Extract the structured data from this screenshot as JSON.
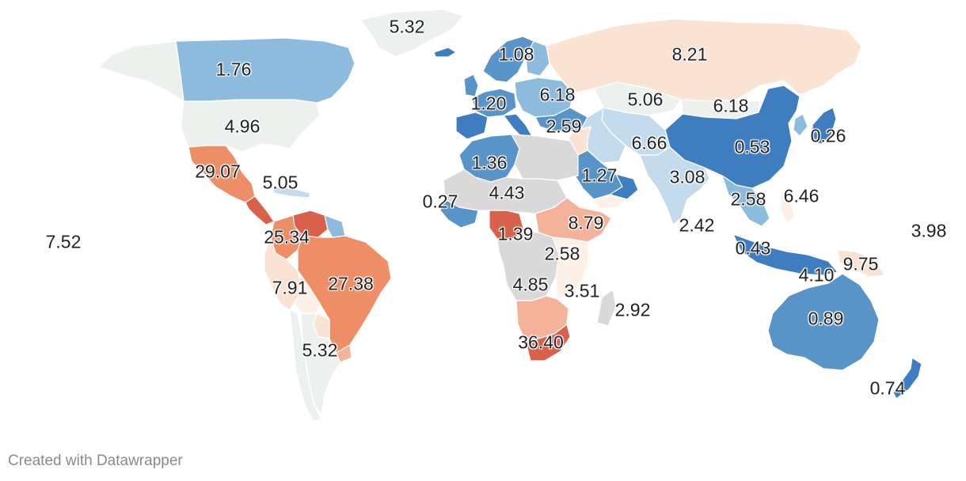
{
  "map": {
    "colors": {
      "deep_red": "#c1272d",
      "red": "#d9604a",
      "orange": "#ee8e66",
      "salmon": "#f4b29a",
      "peach": "#fbe3d3",
      "cream": "#fdf1e7",
      "neutral": "#edf1ee",
      "light_blue": "#c4dbee",
      "mid_blue": "#8cbbde",
      "blue": "#5894c8",
      "dark_blue": "#3d7dc0",
      "no_data": "#d9d9d9"
    },
    "regions": [
      {
        "name": "greenland",
        "color": "neutral"
      },
      {
        "name": "canada",
        "color": "mid_blue"
      },
      {
        "name": "alaska",
        "color": "neutral"
      },
      {
        "name": "united-states",
        "color": "neutral"
      },
      {
        "name": "mexico",
        "color": "orange"
      },
      {
        "name": "central-america",
        "color": "red"
      },
      {
        "name": "caribbean",
        "color": "light_blue"
      },
      {
        "name": "venezuela",
        "color": "red"
      },
      {
        "name": "colombia",
        "color": "orange"
      },
      {
        "name": "guianas",
        "color": "mid_blue"
      },
      {
        "name": "brazil",
        "color": "orange"
      },
      {
        "name": "peru",
        "color": "peach"
      },
      {
        "name": "bolivia",
        "color": "cream"
      },
      {
        "name": "paraguay",
        "color": "peach"
      },
      {
        "name": "uruguay",
        "color": "salmon"
      },
      {
        "name": "chile",
        "color": "neutral"
      },
      {
        "name": "argentina",
        "color": "neutral"
      },
      {
        "name": "iceland",
        "color": "dark_blue"
      },
      {
        "name": "scandinavia",
        "color": "blue"
      },
      {
        "name": "finland",
        "color": "mid_blue"
      },
      {
        "name": "united-kingdom",
        "color": "blue"
      },
      {
        "name": "western-europe",
        "color": "blue"
      },
      {
        "name": "iberia",
        "color": "dark_blue"
      },
      {
        "name": "italy",
        "color": "dark_blue"
      },
      {
        "name": "eastern-europe",
        "color": "mid_blue"
      },
      {
        "name": "turkey",
        "color": "blue"
      },
      {
        "name": "russia",
        "color": "peach"
      },
      {
        "name": "kazakhstan",
        "color": "neutral"
      },
      {
        "name": "mongolia",
        "color": "neutral"
      },
      {
        "name": "china",
        "color": "dark_blue"
      },
      {
        "name": "korea",
        "color": "mid_blue"
      },
      {
        "name": "japan",
        "color": "dark_blue"
      },
      {
        "name": "central-asia",
        "color": "light_blue"
      },
      {
        "name": "iran",
        "color": "light_blue"
      },
      {
        "name": "middle-east",
        "color": "peach"
      },
      {
        "name": "arabian-peninsula",
        "color": "blue"
      },
      {
        "name": "oman",
        "color": "dark_blue"
      },
      {
        "name": "yemen",
        "color": "cream"
      },
      {
        "name": "south-asia",
        "color": "light_blue"
      },
      {
        "name": "southeast-asia",
        "color": "mid_blue"
      },
      {
        "name": "philippines",
        "color": "cream"
      },
      {
        "name": "indonesia",
        "color": "dark_blue"
      },
      {
        "name": "new-guinea",
        "color": "peach"
      },
      {
        "name": "australia",
        "color": "blue"
      },
      {
        "name": "new-zealand",
        "color": "dark_blue"
      },
      {
        "name": "north-africa-west",
        "color": "blue"
      },
      {
        "name": "egypt-libya",
        "color": "no_data"
      },
      {
        "name": "sahel",
        "color": "no_data"
      },
      {
        "name": "west-africa-coast",
        "color": "blue"
      },
      {
        "name": "nigeria",
        "color": "red"
      },
      {
        "name": "horn-of-africa",
        "color": "salmon"
      },
      {
        "name": "central-africa",
        "color": "no_data"
      },
      {
        "name": "east-africa",
        "color": "cream"
      },
      {
        "name": "southern-africa",
        "color": "salmon"
      },
      {
        "name": "south-africa",
        "color": "red"
      },
      {
        "name": "madagascar",
        "color": "no_data"
      }
    ],
    "labels": [
      {
        "text": "5.32",
        "name": "label-greenland"
      },
      {
        "text": "1.76",
        "name": "label-canada"
      },
      {
        "text": "4.96",
        "name": "label-united-states"
      },
      {
        "text": "29.07",
        "name": "label-mexico"
      },
      {
        "text": "5.05",
        "name": "label-caribbean"
      },
      {
        "text": "7.52",
        "name": "label-pacific-west"
      },
      {
        "text": "25.34",
        "name": "label-colombia"
      },
      {
        "text": "27.38",
        "name": "label-brazil"
      },
      {
        "text": "7.91",
        "name": "label-peru"
      },
      {
        "text": "5.32",
        "name": "label-argentina"
      },
      {
        "text": "1.08",
        "name": "label-scandinavia"
      },
      {
        "text": "1.20",
        "name": "label-western-europe"
      },
      {
        "text": "6.18",
        "name": "label-eastern-europe"
      },
      {
        "text": "2.59",
        "name": "label-turkey"
      },
      {
        "text": "8.21",
        "name": "label-russia"
      },
      {
        "text": "5.06",
        "name": "label-kazakhstan"
      },
      {
        "text": "6.18",
        "name": "label-mongolia"
      },
      {
        "text": "6.66",
        "name": "label-central-asia"
      },
      {
        "text": "0.53",
        "name": "label-china"
      },
      {
        "text": "0.26",
        "name": "label-japan"
      },
      {
        "text": "1.36",
        "name": "label-north-africa"
      },
      {
        "text": "0.27",
        "name": "label-west-africa-coast"
      },
      {
        "text": "4.43",
        "name": "label-sahel"
      },
      {
        "text": "1.27",
        "name": "label-arabia"
      },
      {
        "text": "3.08",
        "name": "label-south-asia"
      },
      {
        "text": "2.58",
        "name": "label-southeast-asia"
      },
      {
        "text": "6.46",
        "name": "label-philippines"
      },
      {
        "text": "2.42",
        "name": "label-indian-ocean"
      },
      {
        "text": "1.39",
        "name": "label-nigeria"
      },
      {
        "text": "8.79",
        "name": "label-horn-of-africa"
      },
      {
        "text": "2.58",
        "name": "label-east-africa"
      },
      {
        "text": "4.85",
        "name": "label-central-africa"
      },
      {
        "text": "3.51",
        "name": "label-mozambique"
      },
      {
        "text": "2.92",
        "name": "label-madagascar"
      },
      {
        "text": "36.40",
        "name": "label-south-africa"
      },
      {
        "text": "0.43",
        "name": "label-indonesia"
      },
      {
        "text": "4.10",
        "name": "label-timor"
      },
      {
        "text": "9.75",
        "name": "label-new-guinea"
      },
      {
        "text": "3.98",
        "name": "label-pacific-east"
      },
      {
        "text": "0.89",
        "name": "label-australia"
      },
      {
        "text": "0.74",
        "name": "label-new-zealand"
      }
    ]
  },
  "footer": {
    "credit": "Created with Datawrapper"
  }
}
